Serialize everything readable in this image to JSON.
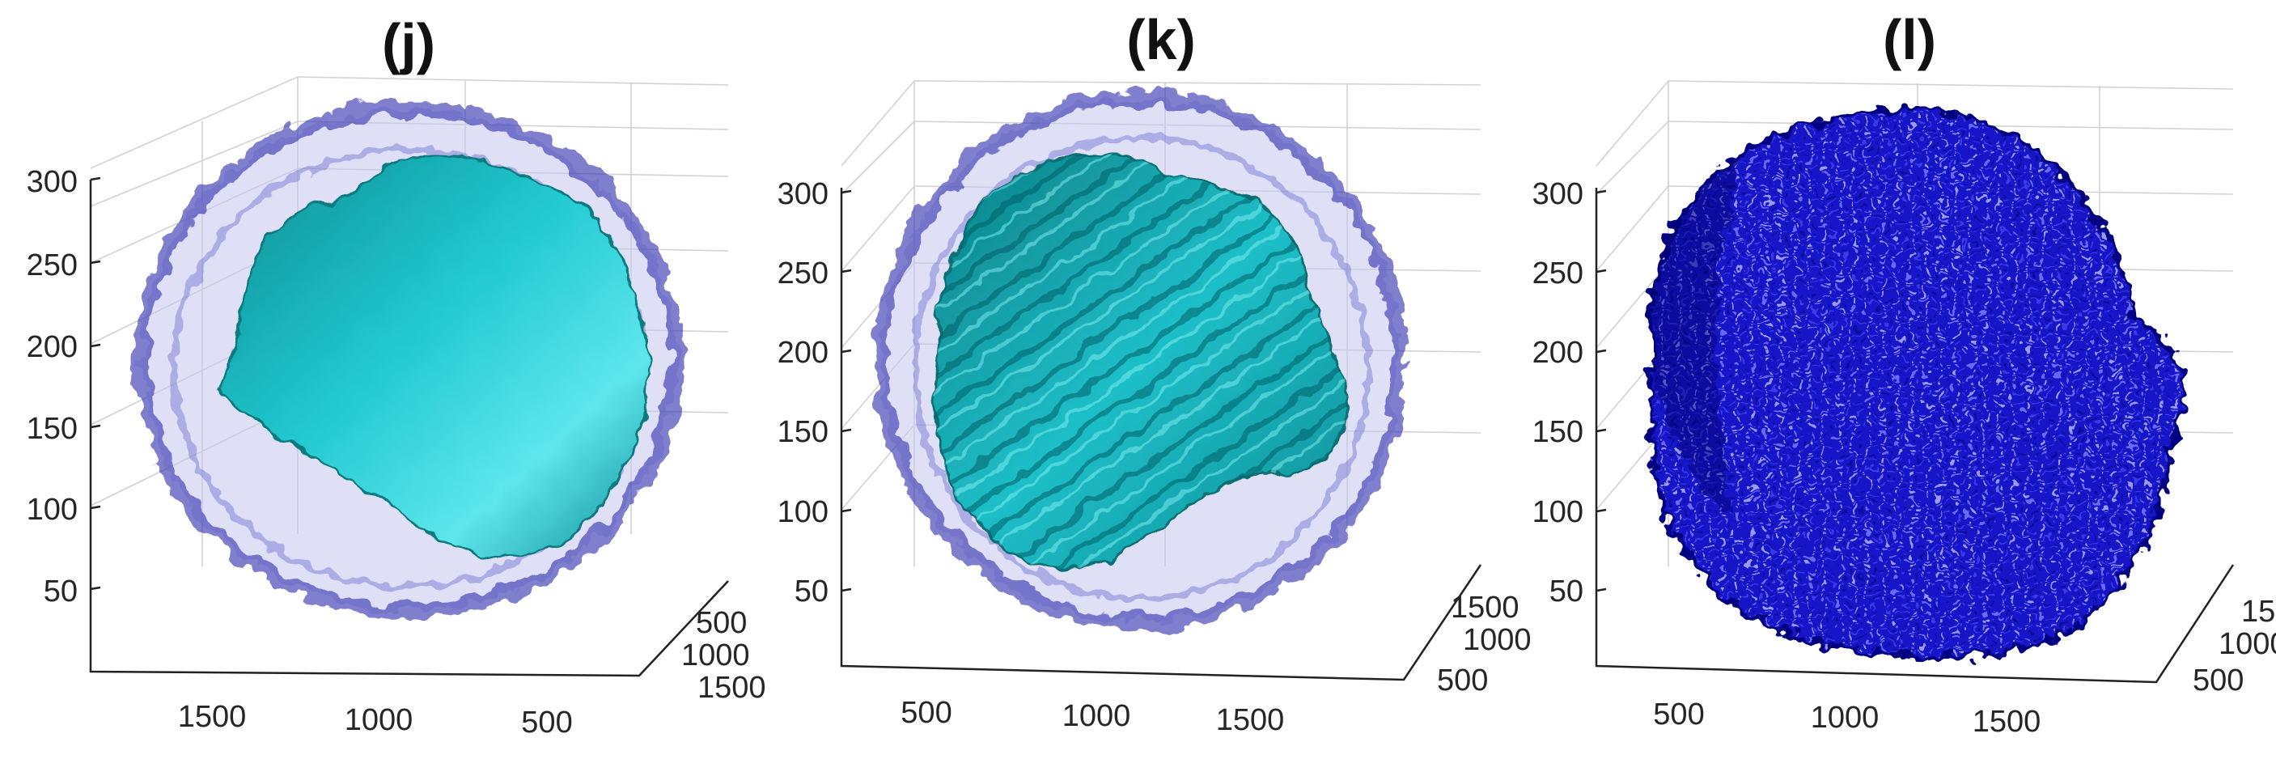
{
  "chart_data": [
    {
      "type": "3d-surface",
      "title": "(j)",
      "z_ticks": [
        "50",
        "100",
        "150",
        "200",
        "250",
        "300"
      ],
      "x_ticks": [
        "1500",
        "1000",
        "500"
      ],
      "y_ticks": [
        "500",
        "1000",
        "1500"
      ],
      "zlim": [
        0,
        320
      ],
      "grid": true,
      "surfaces": [
        {
          "name": "",
          "style": "translucent",
          "color": "#5a5ad2"
        },
        {
          "name": "",
          "style": "opaque",
          "color": "#1fc3cb"
        }
      ]
    },
    {
      "type": "3d-surface",
      "title": "(k)",
      "z_ticks": [
        "50",
        "100",
        "150",
        "200",
        "250",
        "300"
      ],
      "x_ticks": [
        "500",
        "1000",
        "1500"
      ],
      "y_ticks": [
        "500",
        "1000",
        "1500"
      ],
      "zlim": [
        0,
        320
      ],
      "grid": true,
      "surfaces": [
        {
          "name": "",
          "style": "translucent",
          "color": "#5a5ad2"
        },
        {
          "name": "",
          "style": "opaque",
          "color": "#1fc3cb"
        }
      ]
    },
    {
      "type": "3d-surface",
      "title": "(l)",
      "z_ticks": [
        "50",
        "100",
        "150",
        "200",
        "250",
        "300"
      ],
      "x_ticks": [
        "500",
        "1000",
        "1500"
      ],
      "y_ticks": [
        "500",
        "1000",
        "15"
      ],
      "zlim": [
        0,
        320
      ],
      "grid": true,
      "surfaces": [
        {
          "name": "",
          "style": "opaque",
          "color": "#1a1ad8"
        }
      ]
    }
  ]
}
